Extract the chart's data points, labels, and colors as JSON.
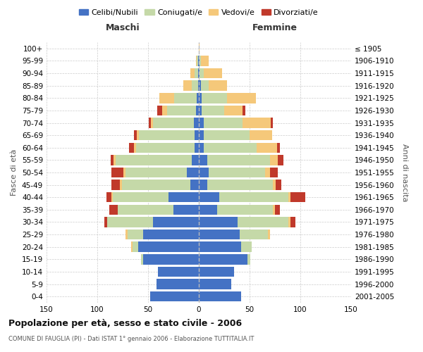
{
  "age_groups": [
    "0-4",
    "5-9",
    "10-14",
    "15-19",
    "20-24",
    "25-29",
    "30-34",
    "35-39",
    "40-44",
    "45-49",
    "50-54",
    "55-59",
    "60-64",
    "65-69",
    "70-74",
    "75-79",
    "80-84",
    "85-89",
    "90-94",
    "95-99",
    "100+"
  ],
  "birth_years": [
    "2001-2005",
    "1996-2000",
    "1991-1995",
    "1986-1990",
    "1981-1985",
    "1976-1980",
    "1971-1975",
    "1966-1970",
    "1961-1965",
    "1956-1960",
    "1951-1955",
    "1946-1950",
    "1941-1945",
    "1936-1940",
    "1931-1935",
    "1926-1930",
    "1921-1925",
    "1916-1920",
    "1911-1915",
    "1906-1910",
    "≤ 1905"
  ],
  "maschi": {
    "celibe": [
      48,
      42,
      40,
      55,
      60,
      55,
      45,
      25,
      30,
      8,
      12,
      7,
      4,
      4,
      5,
      3,
      2,
      1,
      1,
      1,
      0
    ],
    "coniugato": [
      0,
      0,
      0,
      2,
      5,
      15,
      45,
      55,
      55,
      68,
      60,
      75,
      58,
      55,
      40,
      28,
      22,
      6,
      3,
      1,
      0
    ],
    "vedovo": [
      0,
      0,
      0,
      0,
      2,
      2,
      0,
      0,
      1,
      2,
      2,
      2,
      2,
      2,
      2,
      5,
      15,
      8,
      4,
      1,
      0
    ],
    "divorziato": [
      0,
      0,
      0,
      0,
      0,
      0,
      3,
      8,
      5,
      8,
      12,
      3,
      5,
      3,
      2,
      5,
      0,
      0,
      0,
      0,
      0
    ]
  },
  "femmine": {
    "nubile": [
      42,
      32,
      35,
      48,
      42,
      40,
      38,
      18,
      20,
      8,
      10,
      8,
      5,
      5,
      5,
      3,
      3,
      2,
      1,
      1,
      0
    ],
    "coniugata": [
      0,
      0,
      0,
      3,
      10,
      28,
      50,
      55,
      68,
      65,
      55,
      62,
      52,
      45,
      38,
      22,
      25,
      8,
      4,
      1,
      0
    ],
    "vedova": [
      0,
      0,
      0,
      0,
      0,
      2,
      2,
      2,
      2,
      3,
      5,
      8,
      20,
      22,
      28,
      18,
      28,
      18,
      18,
      8,
      1
    ],
    "divorziata": [
      0,
      0,
      0,
      0,
      0,
      0,
      5,
      5,
      15,
      5,
      8,
      5,
      3,
      0,
      2,
      3,
      0,
      0,
      0,
      0,
      0
    ]
  },
  "colors": {
    "celibe_nubile": "#4472C4",
    "coniugato_a": "#C5D9A8",
    "vedovo_a": "#F5C87A",
    "divorziato_a": "#C0392B"
  },
  "title": "Popolazione per età, sesso e stato civile - 2006",
  "subtitle": "COMUNE DI FAUGLIA (PI) - Dati ISTAT 1° gennaio 2006 - Elaborazione TUTTITALIA.IT",
  "xlim": 150,
  "legend_labels": [
    "Celibi/Nubili",
    "Coniugati/e",
    "Vedovi/e",
    "Divorziati/e"
  ],
  "ylabel_left": "Fasce di età",
  "ylabel_right": "Anni di nascita"
}
